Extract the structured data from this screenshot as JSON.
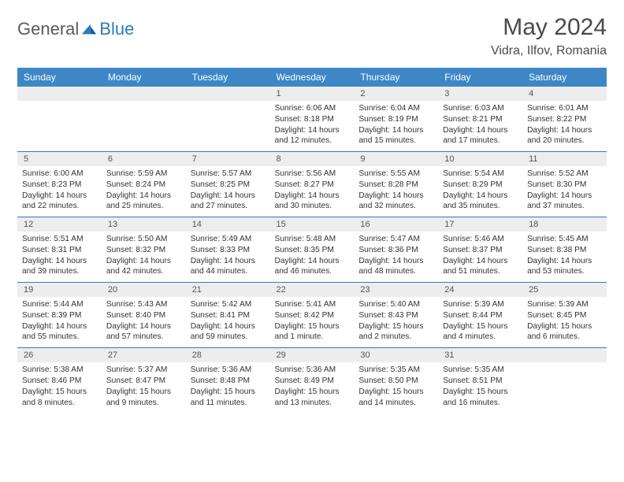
{
  "brand": {
    "part1": "General",
    "part2": "Blue"
  },
  "title": "May 2024",
  "location": "Vidra, Ilfov, Romania",
  "colors": {
    "header_bg": "#3d87c7",
    "header_text": "#ffffff",
    "daynum_bg": "#ededed",
    "border": "#2b7bbf",
    "logo_gray": "#5a5a5a",
    "logo_blue": "#2b7bbf"
  },
  "dayHeaders": [
    "Sunday",
    "Monday",
    "Tuesday",
    "Wednesday",
    "Thursday",
    "Friday",
    "Saturday"
  ],
  "weeks": [
    [
      null,
      null,
      null,
      {
        "n": "1",
        "sr": "6:06 AM",
        "ss": "8:18 PM",
        "dl": "14 hours and 12 minutes."
      },
      {
        "n": "2",
        "sr": "6:04 AM",
        "ss": "8:19 PM",
        "dl": "14 hours and 15 minutes."
      },
      {
        "n": "3",
        "sr": "6:03 AM",
        "ss": "8:21 PM",
        "dl": "14 hours and 17 minutes."
      },
      {
        "n": "4",
        "sr": "6:01 AM",
        "ss": "8:22 PM",
        "dl": "14 hours and 20 minutes."
      }
    ],
    [
      {
        "n": "5",
        "sr": "6:00 AM",
        "ss": "8:23 PM",
        "dl": "14 hours and 22 minutes."
      },
      {
        "n": "6",
        "sr": "5:59 AM",
        "ss": "8:24 PM",
        "dl": "14 hours and 25 minutes."
      },
      {
        "n": "7",
        "sr": "5:57 AM",
        "ss": "8:25 PM",
        "dl": "14 hours and 27 minutes."
      },
      {
        "n": "8",
        "sr": "5:56 AM",
        "ss": "8:27 PM",
        "dl": "14 hours and 30 minutes."
      },
      {
        "n": "9",
        "sr": "5:55 AM",
        "ss": "8:28 PM",
        "dl": "14 hours and 32 minutes."
      },
      {
        "n": "10",
        "sr": "5:54 AM",
        "ss": "8:29 PM",
        "dl": "14 hours and 35 minutes."
      },
      {
        "n": "11",
        "sr": "5:52 AM",
        "ss": "8:30 PM",
        "dl": "14 hours and 37 minutes."
      }
    ],
    [
      {
        "n": "12",
        "sr": "5:51 AM",
        "ss": "8:31 PM",
        "dl": "14 hours and 39 minutes."
      },
      {
        "n": "13",
        "sr": "5:50 AM",
        "ss": "8:32 PM",
        "dl": "14 hours and 42 minutes."
      },
      {
        "n": "14",
        "sr": "5:49 AM",
        "ss": "8:33 PM",
        "dl": "14 hours and 44 minutes."
      },
      {
        "n": "15",
        "sr": "5:48 AM",
        "ss": "8:35 PM",
        "dl": "14 hours and 46 minutes."
      },
      {
        "n": "16",
        "sr": "5:47 AM",
        "ss": "8:36 PM",
        "dl": "14 hours and 48 minutes."
      },
      {
        "n": "17",
        "sr": "5:46 AM",
        "ss": "8:37 PM",
        "dl": "14 hours and 51 minutes."
      },
      {
        "n": "18",
        "sr": "5:45 AM",
        "ss": "8:38 PM",
        "dl": "14 hours and 53 minutes."
      }
    ],
    [
      {
        "n": "19",
        "sr": "5:44 AM",
        "ss": "8:39 PM",
        "dl": "14 hours and 55 minutes."
      },
      {
        "n": "20",
        "sr": "5:43 AM",
        "ss": "8:40 PM",
        "dl": "14 hours and 57 minutes."
      },
      {
        "n": "21",
        "sr": "5:42 AM",
        "ss": "8:41 PM",
        "dl": "14 hours and 59 minutes."
      },
      {
        "n": "22",
        "sr": "5:41 AM",
        "ss": "8:42 PM",
        "dl": "15 hours and 1 minute."
      },
      {
        "n": "23",
        "sr": "5:40 AM",
        "ss": "8:43 PM",
        "dl": "15 hours and 2 minutes."
      },
      {
        "n": "24",
        "sr": "5:39 AM",
        "ss": "8:44 PM",
        "dl": "15 hours and 4 minutes."
      },
      {
        "n": "25",
        "sr": "5:39 AM",
        "ss": "8:45 PM",
        "dl": "15 hours and 6 minutes."
      }
    ],
    [
      {
        "n": "26",
        "sr": "5:38 AM",
        "ss": "8:46 PM",
        "dl": "15 hours and 8 minutes."
      },
      {
        "n": "27",
        "sr": "5:37 AM",
        "ss": "8:47 PM",
        "dl": "15 hours and 9 minutes."
      },
      {
        "n": "28",
        "sr": "5:36 AM",
        "ss": "8:48 PM",
        "dl": "15 hours and 11 minutes."
      },
      {
        "n": "29",
        "sr": "5:36 AM",
        "ss": "8:49 PM",
        "dl": "15 hours and 13 minutes."
      },
      {
        "n": "30",
        "sr": "5:35 AM",
        "ss": "8:50 PM",
        "dl": "15 hours and 14 minutes."
      },
      {
        "n": "31",
        "sr": "5:35 AM",
        "ss": "8:51 PM",
        "dl": "15 hours and 16 minutes."
      },
      null
    ]
  ],
  "labels": {
    "sunrise": "Sunrise: ",
    "sunset": "Sunset: ",
    "daylight": "Daylight: "
  }
}
